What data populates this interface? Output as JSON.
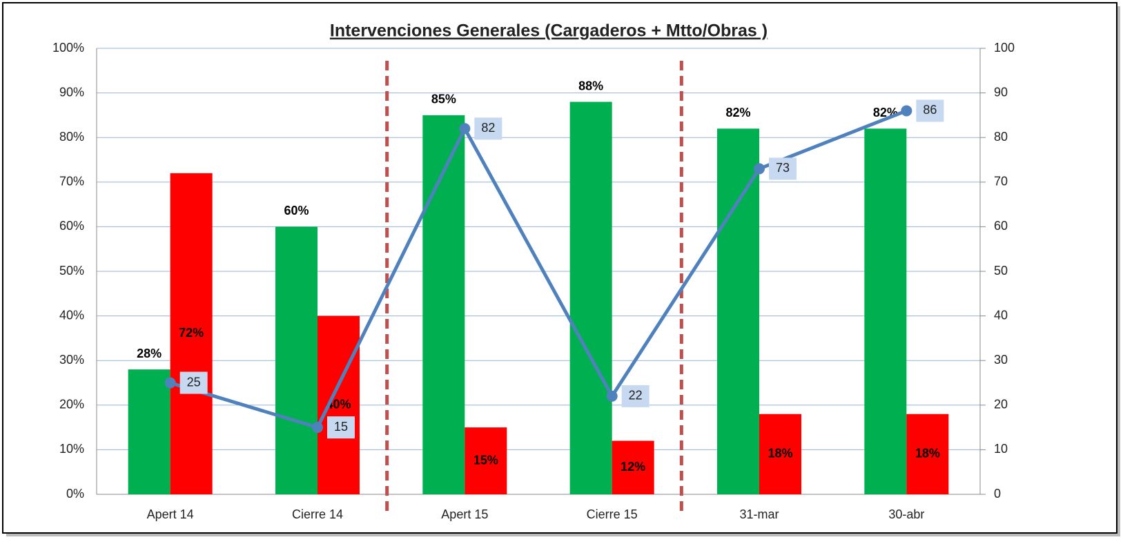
{
  "chart_data": {
    "type": "bar_line",
    "title": "Intervenciones Generales (Cargaderos + Mtto/Obras )",
    "categories": [
      "Apert 14",
      "Cierre 14",
      "Apert 15",
      "Cierre 15",
      "31-mar",
      "30-abr"
    ],
    "series": [
      {
        "color": "#00b050",
        "values": [
          28,
          60,
          85,
          88,
          82,
          82
        ],
        "value_labels": [
          "28%",
          "60%",
          "85%",
          "88%",
          "82%",
          "82%"
        ]
      },
      {
        "color": "#ff0000",
        "values": [
          72,
          40,
          15,
          12,
          18,
          18
        ],
        "value_labels": [
          "72%",
          "40%",
          "15%",
          "12%",
          "18%",
          "18%"
        ]
      },
      {
        "type": "line",
        "axis": "y2",
        "color": "#4f81bd",
        "values": [
          25,
          15,
          82,
          22,
          73,
          86
        ]
      }
    ],
    "ylim": [
      0,
      100
    ],
    "yticks": [
      {
        "value": 0,
        "label": "0%"
      },
      {
        "value": 10,
        "label": "10%"
      },
      {
        "value": 20,
        "label": "20%"
      },
      {
        "value": 30,
        "label": "30%"
      },
      {
        "value": 40,
        "label": "40%"
      },
      {
        "value": 50,
        "label": "50%"
      },
      {
        "value": 60,
        "label": "60%"
      },
      {
        "value": 70,
        "label": "70%"
      },
      {
        "value": 80,
        "label": "80%"
      },
      {
        "value": 90,
        "label": "90%"
      },
      {
        "value": 100,
        "label": "100%"
      }
    ],
    "y2lim": [
      0,
      100
    ],
    "y2ticks": [
      0,
      10,
      20,
      30,
      40,
      50,
      60,
      70,
      80,
      90,
      100
    ],
    "grid": true
  }
}
